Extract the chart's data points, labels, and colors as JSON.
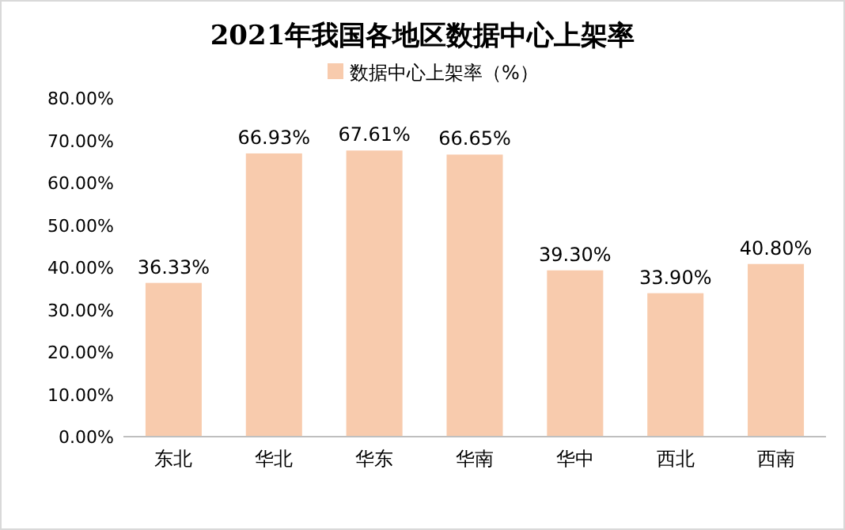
{
  "chart_data": {
    "type": "bar",
    "title": "2021年我国各地区数据中心上架率",
    "categories": [
      "东北",
      "华北",
      "华东",
      "华南",
      "华中",
      "西北",
      "西南"
    ],
    "series": [
      {
        "name": "数据中心上架率（%）",
        "color": "#f8cbad",
        "values": [
          36.33,
          66.93,
          67.61,
          66.65,
          39.3,
          33.9,
          40.8
        ],
        "value_labels": [
          "36.33%",
          "66.93%",
          "67.61%",
          "66.65%",
          "39.30%",
          "33.90%",
          "40.80%"
        ]
      }
    ],
    "ylim": [
      0,
      80
    ],
    "yticks": [
      {
        "value": 0,
        "label": "0.00%"
      },
      {
        "value": 10,
        "label": "10.00%"
      },
      {
        "value": 20,
        "label": "20.00%"
      },
      {
        "value": 30,
        "label": "30.00%"
      },
      {
        "value": 40,
        "label": "40.00%"
      },
      {
        "value": 50,
        "label": "50.00%"
      },
      {
        "value": 60,
        "label": "60.00%"
      },
      {
        "value": 70,
        "label": "70.00%"
      },
      {
        "value": 80,
        "label": "80.00%"
      }
    ],
    "grid": false,
    "legend": "top"
  }
}
